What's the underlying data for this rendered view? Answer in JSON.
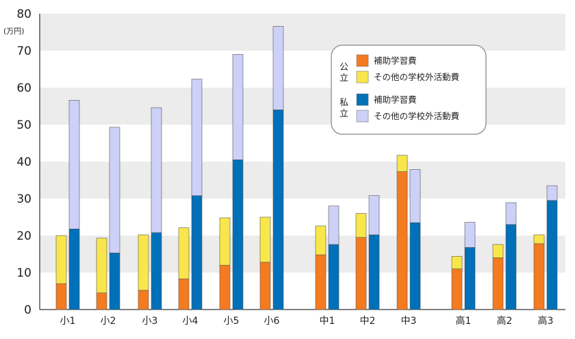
{
  "chart_data": {
    "type": "bar",
    "stacked": true,
    "title": "",
    "ylabel": "(万円)",
    "ylim": [
      0,
      80
    ],
    "yticks": [
      0,
      10,
      20,
      30,
      40,
      50,
      60,
      70,
      80
    ],
    "categories": [
      "小1",
      "小2",
      "小3",
      "小4",
      "小5",
      "小6",
      "中1",
      "中2",
      "中3",
      "高1",
      "高2",
      "高3"
    ],
    "groups": [
      {
        "name": "公立",
        "series": [
          {
            "name": "補助学習費",
            "color": "#f47b20",
            "values": [
              7,
              4.5,
              5.2,
              8.3,
              12,
              12.8,
              14.8,
              19.5,
              37.3,
              11,
              14,
              17.8
            ]
          },
          {
            "name": "その他の学校外活動費",
            "color": "#f9e64b",
            "values": [
              13,
              14.8,
              15,
              13.8,
              12.8,
              12.2,
              7.8,
              6.5,
              4.4,
              3.4,
              3.6,
              2.4
            ]
          }
        ]
      },
      {
        "name": "私立",
        "series": [
          {
            "name": "補助学習費",
            "color": "#0070b8",
            "values": [
              21.8,
              15.3,
              20.8,
              30.8,
              40.5,
              54,
              17.6,
              20.2,
              23.5,
              16.8,
              23,
              29.5
            ]
          },
          {
            "name": "その他の学校外活動費",
            "color": "#cdd0f7",
            "values": [
              34.8,
              34,
              33.8,
              31.5,
              28.5,
              22.6,
              10.4,
              10.6,
              14.4,
              6.8,
              5.9,
              4
            ]
          }
        ]
      }
    ],
    "legend": {
      "position": "top-right",
      "groups": [
        {
          "label": "公立",
          "items": [
            {
              "label": "補助学習費",
              "color": "#f47b20"
            },
            {
              "label": "その他の学校外活動費",
              "color": "#f9e64b"
            }
          ]
        },
        {
          "label": "私立",
          "items": [
            {
              "label": "補助学習費",
              "color": "#0070b8"
            },
            {
              "label": "その他の学校外活動費",
              "color": "#cdd0f7"
            }
          ]
        }
      ]
    }
  }
}
